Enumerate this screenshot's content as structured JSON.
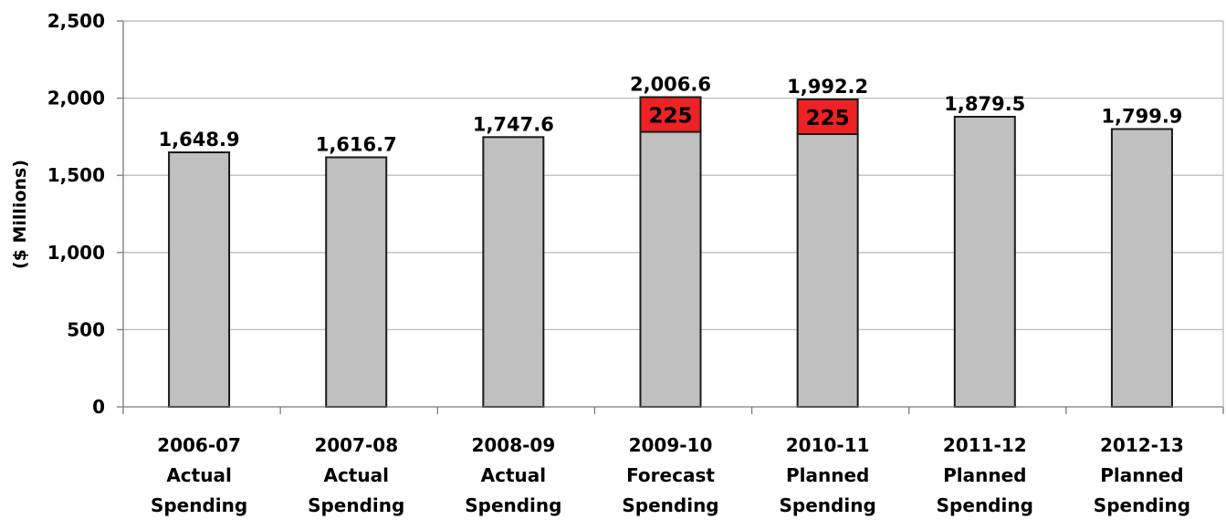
{
  "chart_data": {
    "type": "bar",
    "stacked": true,
    "title": "",
    "xlabel": "",
    "ylabel": "($ Millions)",
    "ylim": [
      0,
      2500
    ],
    "yticks": [
      0,
      500,
      1000,
      1500,
      2000,
      2500
    ],
    "ytick_labels": [
      "0",
      "500",
      "1,000",
      "1,500",
      "2,000",
      "2,500"
    ],
    "grid": true,
    "legend": "none",
    "categories": [
      [
        "2006-07",
        "Actual",
        "Spending"
      ],
      [
        "2007-08",
        "Actual",
        "Spending"
      ],
      [
        "2008-09",
        "Actual",
        "Spending"
      ],
      [
        "2009-10",
        "Forecast",
        "Spending"
      ],
      [
        "2010-11",
        "Planned",
        "Spending"
      ],
      [
        "2011-12",
        "Planned",
        "Spending"
      ],
      [
        "2012-13",
        "Planned",
        "Spending"
      ]
    ],
    "series": [
      {
        "values": [
          1648.9,
          1616.7,
          1747.6,
          1781.6,
          1767.2,
          1879.5,
          1799.9
        ],
        "color": "#c0c0c0"
      },
      {
        "values": [
          0,
          0,
          0,
          225,
          225,
          0,
          0
        ],
        "color": "#ee2224",
        "labels": [
          "",
          "",
          "",
          "225",
          "225",
          "",
          ""
        ]
      }
    ],
    "total_labels": [
      "1,648.9",
      "1,616.7",
      "1,747.6",
      "2,006.6",
      "1,992.2",
      "1,879.5",
      "1,799.9"
    ]
  }
}
